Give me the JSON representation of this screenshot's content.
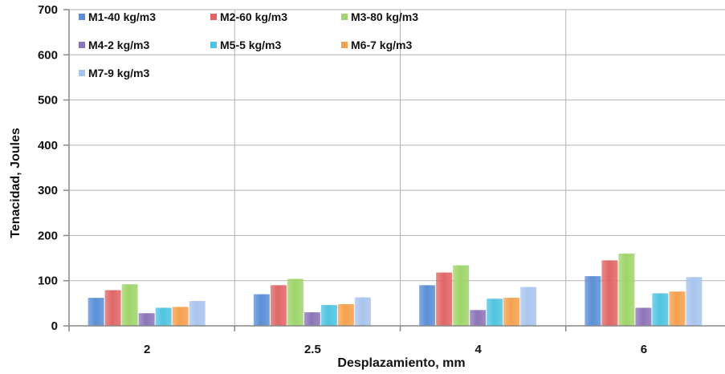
{
  "chart_data": {
    "type": "bar",
    "title": "",
    "xlabel": "Desplazamiento, mm",
    "ylabel": "Tenacidad, Joules",
    "categories": [
      "2",
      "2.5",
      "4",
      "6"
    ],
    "ylim": [
      0,
      700
    ],
    "yticks": [
      0,
      100,
      200,
      300,
      400,
      500,
      600,
      700
    ],
    "grid": true,
    "legend_position": "top-left",
    "series": [
      {
        "name": "M1-40 kg/m3",
        "color": "#5b8fd6",
        "values": [
          62,
          70,
          90,
          110
        ]
      },
      {
        "name": "M2-60 kg/m3",
        "color": "#e06666",
        "values": [
          79,
          90,
          118,
          145
        ]
      },
      {
        "name": "M3-80 kg/m3",
        "color": "#9fd46a",
        "values": [
          92,
          104,
          134,
          160
        ]
      },
      {
        "name": "M4-2 kg/m3",
        "color": "#8d74b8",
        "values": [
          28,
          30,
          35,
          40
        ]
      },
      {
        "name": "M5-5 kg/m3",
        "color": "#4fc4e0",
        "values": [
          40,
          46,
          60,
          72
        ]
      },
      {
        "name": "M6-7 kg/m3",
        "color": "#f5a04e",
        "values": [
          42,
          48,
          62,
          76
        ]
      },
      {
        "name": "M7-9 kg/m3",
        "color": "#a9c4ee",
        "values": [
          55,
          63,
          86,
          108
        ]
      }
    ]
  }
}
